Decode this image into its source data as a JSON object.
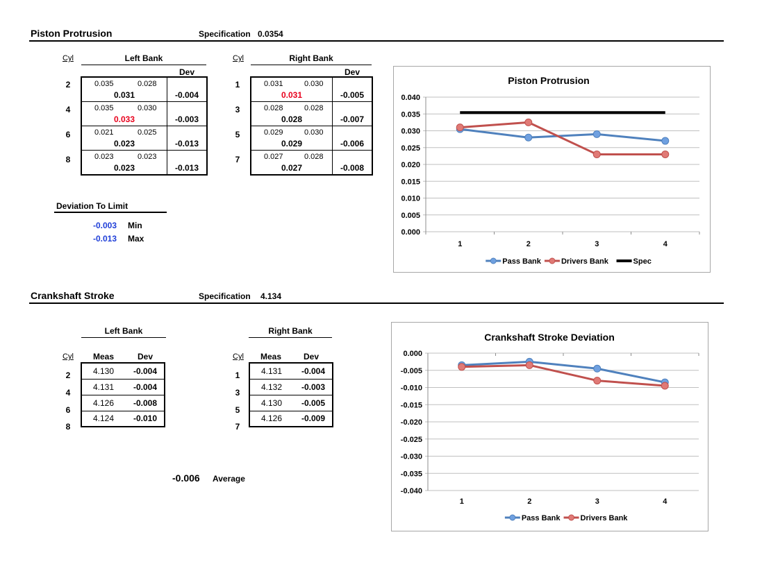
{
  "piston": {
    "title": "Piston Protrusion",
    "spec_label": "Specification",
    "spec_value": "0.0354",
    "cyl_header_left": "Cyl",
    "cyl_header_right": "Cyl",
    "left_bank_label": "Left Bank",
    "right_bank_label": "Right Bank",
    "dev_header": "Dev",
    "left_rows": [
      {
        "cyl": "2",
        "m1": "0.035",
        "m2": "0.028",
        "avg": "0.031",
        "dev": "-0.004",
        "highlight": false
      },
      {
        "cyl": "4",
        "m1": "0.035",
        "m2": "0.030",
        "avg": "0.033",
        "dev": "-0.003",
        "highlight": true
      },
      {
        "cyl": "6",
        "m1": "0.021",
        "m2": "0.025",
        "avg": "0.023",
        "dev": "-0.013",
        "highlight": false
      },
      {
        "cyl": "8",
        "m1": "0.023",
        "m2": "0.023",
        "avg": "0.023",
        "dev": "-0.013",
        "highlight": false
      }
    ],
    "right_rows": [
      {
        "cyl": "1",
        "m1": "0.031",
        "m2": "0.030",
        "avg": "0.031",
        "dev": "-0.005",
        "highlight": true
      },
      {
        "cyl": "3",
        "m1": "0.028",
        "m2": "0.028",
        "avg": "0.028",
        "dev": "-0.007",
        "highlight": false
      },
      {
        "cyl": "5",
        "m1": "0.029",
        "m2": "0.030",
        "avg": "0.029",
        "dev": "-0.006",
        "highlight": false
      },
      {
        "cyl": "7",
        "m1": "0.027",
        "m2": "0.028",
        "avg": "0.027",
        "dev": "-0.008",
        "highlight": false
      }
    ],
    "deviation_label": "Deviation To Limit",
    "min_value": "-0.003",
    "min_label": "Min",
    "max_value": "-0.013",
    "max_label": "Max"
  },
  "crank": {
    "title": "Crankshaft Stroke",
    "spec_label": "Specification",
    "spec_value": "4.134",
    "left_bank_label": "Left Bank",
    "right_bank_label": "Right Bank",
    "cyl_header": "Cyl",
    "meas_header": "Meas",
    "dev_header": "Dev",
    "left_rows": [
      {
        "cyl": "2",
        "meas": "4.130",
        "dev": "-0.004"
      },
      {
        "cyl": "4",
        "meas": "4.131",
        "dev": "-0.004"
      },
      {
        "cyl": "6",
        "meas": "4.126",
        "dev": "-0.008"
      },
      {
        "cyl": "8",
        "meas": "4.124",
        "dev": "-0.010"
      }
    ],
    "right_rows": [
      {
        "cyl": "1",
        "meas": "4.131",
        "dev": "-0.004"
      },
      {
        "cyl": "3",
        "meas": "4.132",
        "dev": "-0.003"
      },
      {
        "cyl": "5",
        "meas": "4.130",
        "dev": "-0.005"
      },
      {
        "cyl": "7",
        "meas": "4.126",
        "dev": "-0.009"
      }
    ],
    "average_value": "-0.006",
    "average_label": "Average"
  },
  "colors": {
    "pass": "#4f81bd",
    "pass_marker": "#6fa0e0",
    "drivers": "#c0504d",
    "drivers_marker": "#e07a76",
    "spec": "#000000",
    "highlight": "#e8001c",
    "stat": "#1f3fd8"
  },
  "chart_data": [
    {
      "type": "line",
      "title": "Piston Protrusion",
      "categories": [
        "1",
        "2",
        "3",
        "4"
      ],
      "series": [
        {
          "name": "Pass Bank",
          "values": [
            0.0305,
            0.028,
            0.029,
            0.027
          ]
        },
        {
          "name": "Drivers Bank",
          "values": [
            0.031,
            0.0325,
            0.023,
            0.023
          ]
        },
        {
          "name": "Spec",
          "values": [
            0.0354,
            0.0354,
            0.0354,
            0.0354
          ]
        }
      ],
      "ylim": [
        0.0,
        0.04
      ],
      "yticks": [
        "0.000",
        "0.005",
        "0.010",
        "0.015",
        "0.020",
        "0.025",
        "0.030",
        "0.035",
        "0.040"
      ],
      "grid": true,
      "legend": "bottom"
    },
    {
      "type": "line",
      "title": "Crankshaft Stroke Deviation",
      "categories": [
        "1",
        "2",
        "3",
        "4"
      ],
      "series": [
        {
          "name": "Pass Bank",
          "values": [
            -0.0035,
            -0.0025,
            -0.0045,
            -0.0085
          ]
        },
        {
          "name": "Drivers Bank",
          "values": [
            -0.004,
            -0.0035,
            -0.008,
            -0.0095
          ]
        }
      ],
      "ylim": [
        -0.04,
        0.0
      ],
      "yticks": [
        "0.000",
        "-0.005",
        "-0.010",
        "-0.015",
        "-0.020",
        "-0.025",
        "-0.030",
        "-0.035",
        "-0.040"
      ],
      "grid": true,
      "legend": "bottom"
    }
  ]
}
